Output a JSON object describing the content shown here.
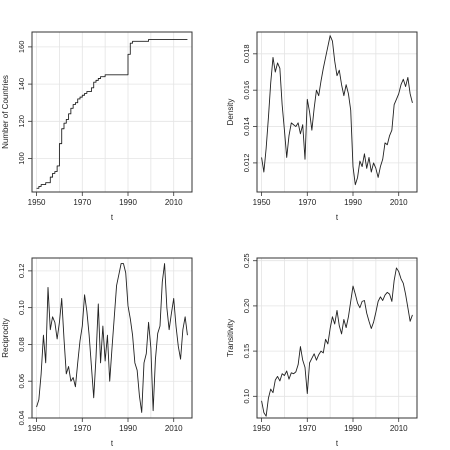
{
  "chart_data": [
    {
      "type": "line",
      "xlabel": "t",
      "ylabel": "Number of Countries",
      "xlim": [
        1948,
        2018
      ],
      "ylim": [
        82,
        168
      ],
      "xticks": [
        1950,
        1970,
        1990,
        2010
      ],
      "xticks_minor": [
        1960,
        1980,
        2000
      ],
      "yticks": [
        100,
        120,
        140,
        160
      ],
      "grid": true,
      "step": true,
      "x": [
        1950,
        1951,
        1952,
        1953,
        1954,
        1955,
        1956,
        1957,
        1958,
        1959,
        1960,
        1961,
        1962,
        1963,
        1964,
        1965,
        1966,
        1967,
        1968,
        1969,
        1970,
        1971,
        1972,
        1973,
        1974,
        1975,
        1976,
        1977,
        1978,
        1979,
        1980,
        1981,
        1982,
        1983,
        1984,
        1985,
        1986,
        1987,
        1988,
        1989,
        1990,
        1991,
        1992,
        1993,
        1994,
        1995,
        1996,
        1997,
        1998,
        1999,
        2000,
        2001,
        2002,
        2003,
        2004,
        2005,
        2006,
        2007,
        2008,
        2009,
        2010,
        2011,
        2012,
        2013,
        2014,
        2015,
        2016
      ],
      "y": [
        84,
        85,
        86,
        86,
        87,
        87,
        90,
        92,
        93,
        96,
        108,
        116,
        119,
        121,
        124,
        127,
        129,
        130,
        132,
        133,
        134,
        135,
        136,
        136,
        138,
        141,
        142,
        143,
        144,
        144,
        145,
        145,
        145,
        145,
        145,
        145,
        145,
        145,
        145,
        145,
        156,
        162,
        163,
        163,
        163,
        163,
        163,
        163,
        163,
        164,
        164,
        164,
        164,
        164,
        164,
        164,
        164,
        164,
        164,
        164,
        164,
        164,
        164,
        164,
        164,
        164,
        164
      ]
    },
    {
      "type": "line",
      "xlabel": "t",
      "ylabel": "Density",
      "xlim": [
        1948,
        2018
      ],
      "ylim": [
        0.0104,
        0.0192
      ],
      "xticks": [
        1950,
        1970,
        1990,
        2010
      ],
      "xticks_minor": [
        1960,
        1980,
        2000
      ],
      "yticks": [
        0.012,
        0.014,
        0.016,
        0.018
      ],
      "ytick_labels": [
        "0.012",
        "0.014",
        "0.016",
        "0.018"
      ],
      "grid": true,
      "x": [
        1950,
        1951,
        1952,
        1953,
        1954,
        1955,
        1956,
        1957,
        1958,
        1959,
        1960,
        1961,
        1962,
        1963,
        1964,
        1965,
        1966,
        1967,
        1968,
        1969,
        1970,
        1971,
        1972,
        1973,
        1974,
        1975,
        1976,
        1977,
        1978,
        1979,
        1980,
        1981,
        1982,
        1983,
        1984,
        1985,
        1986,
        1987,
        1988,
        1989,
        1990,
        1991,
        1992,
        1993,
        1994,
        1995,
        1996,
        1997,
        1998,
        1999,
        2000,
        2001,
        2002,
        2003,
        2004,
        2005,
        2006,
        2007,
        2008,
        2009,
        2010,
        2011,
        2012,
        2013,
        2014,
        2015,
        2016
      ],
      "y": [
        0.0123,
        0.0115,
        0.0128,
        0.0145,
        0.0164,
        0.0178,
        0.017,
        0.0175,
        0.0172,
        0.0152,
        0.0138,
        0.0123,
        0.0135,
        0.0142,
        0.0141,
        0.014,
        0.0142,
        0.0136,
        0.0141,
        0.0122,
        0.0155,
        0.0148,
        0.0138,
        0.015,
        0.016,
        0.0157,
        0.0165,
        0.0172,
        0.0178,
        0.0184,
        0.019,
        0.0187,
        0.0176,
        0.0168,
        0.0171,
        0.0163,
        0.0157,
        0.0163,
        0.0158,
        0.0149,
        0.0118,
        0.0108,
        0.0112,
        0.0121,
        0.0118,
        0.0125,
        0.0117,
        0.0123,
        0.0115,
        0.012,
        0.0117,
        0.0112,
        0.0118,
        0.0122,
        0.0131,
        0.013,
        0.0135,
        0.0138,
        0.0152,
        0.0155,
        0.0158,
        0.0163,
        0.0166,
        0.0162,
        0.0167,
        0.0158,
        0.0153
      ]
    },
    {
      "type": "line",
      "xlabel": "t",
      "ylabel": "Reciprocity",
      "xlim": [
        1948,
        2018
      ],
      "ylim": [
        0.04,
        0.127
      ],
      "xticks": [
        1950,
        1970,
        1990,
        2010
      ],
      "xticks_minor": [
        1960,
        1980,
        2000
      ],
      "yticks": [
        0.04,
        0.06,
        0.08,
        0.1,
        0.12
      ],
      "ytick_labels": [
        "0.04",
        "0.06",
        "0.08",
        "0.10",
        "0.12"
      ],
      "grid": true,
      "x": [
        1950,
        1951,
        1952,
        1953,
        1954,
        1955,
        1956,
        1957,
        1958,
        1959,
        1960,
        1961,
        1962,
        1963,
        1964,
        1965,
        1966,
        1967,
        1968,
        1969,
        1970,
        1971,
        1972,
        1973,
        1974,
        1975,
        1976,
        1977,
        1978,
        1979,
        1980,
        1981,
        1982,
        1983,
        1984,
        1985,
        1986,
        1987,
        1988,
        1989,
        1990,
        1991,
        1992,
        1993,
        1994,
        1995,
        1996,
        1997,
        1998,
        1999,
        2000,
        2001,
        2002,
        2003,
        2004,
        2005,
        2006,
        2007,
        2008,
        2009,
        2010,
        2011,
        2012,
        2013,
        2014,
        2015,
        2016
      ],
      "y": [
        0.046,
        0.05,
        0.064,
        0.085,
        0.07,
        0.111,
        0.088,
        0.095,
        0.092,
        0.083,
        0.092,
        0.105,
        0.083,
        0.064,
        0.068,
        0.06,
        0.062,
        0.057,
        0.07,
        0.082,
        0.09,
        0.107,
        0.098,
        0.085,
        0.068,
        0.051,
        0.073,
        0.102,
        0.07,
        0.09,
        0.071,
        0.085,
        0.06,
        0.078,
        0.095,
        0.112,
        0.118,
        0.124,
        0.124,
        0.119,
        0.101,
        0.094,
        0.085,
        0.07,
        0.066,
        0.052,
        0.043,
        0.07,
        0.075,
        0.092,
        0.078,
        0.044,
        0.072,
        0.086,
        0.09,
        0.114,
        0.124,
        0.1,
        0.088,
        0.097,
        0.105,
        0.09,
        0.079,
        0.072,
        0.088,
        0.095,
        0.085
      ]
    },
    {
      "type": "line",
      "xlabel": "t",
      "ylabel": "Transitivity",
      "xlim": [
        1948,
        2018
      ],
      "ylim": [
        0.076,
        0.253
      ],
      "xticks": [
        1950,
        1970,
        1990,
        2010
      ],
      "xticks_minor": [
        1960,
        1980,
        2000
      ],
      "yticks": [
        0.1,
        0.15,
        0.2,
        0.25
      ],
      "ytick_labels": [
        "0.10",
        "0.15",
        "0.20",
        "0.25"
      ],
      "grid": true,
      "x": [
        1950,
        1951,
        1952,
        1953,
        1954,
        1955,
        1956,
        1957,
        1958,
        1959,
        1960,
        1961,
        1962,
        1963,
        1964,
        1965,
        1966,
        1967,
        1968,
        1969,
        1970,
        1971,
        1972,
        1973,
        1974,
        1975,
        1976,
        1977,
        1978,
        1979,
        1980,
        1981,
        1982,
        1983,
        1984,
        1985,
        1986,
        1987,
        1988,
        1989,
        1990,
        1991,
        1992,
        1993,
        1994,
        1995,
        1996,
        1997,
        1998,
        1999,
        2000,
        2001,
        2002,
        2003,
        2004,
        2005,
        2006,
        2007,
        2008,
        2009,
        2010,
        2011,
        2012,
        2013,
        2014,
        2015,
        2016
      ],
      "y": [
        0.095,
        0.082,
        0.078,
        0.098,
        0.108,
        0.104,
        0.118,
        0.122,
        0.117,
        0.125,
        0.123,
        0.128,
        0.119,
        0.126,
        0.125,
        0.127,
        0.135,
        0.155,
        0.14,
        0.132,
        0.103,
        0.137,
        0.142,
        0.147,
        0.14,
        0.146,
        0.15,
        0.148,
        0.163,
        0.158,
        0.175,
        0.188,
        0.18,
        0.195,
        0.178,
        0.169,
        0.185,
        0.176,
        0.188,
        0.205,
        0.222,
        0.213,
        0.203,
        0.198,
        0.205,
        0.206,
        0.192,
        0.183,
        0.175,
        0.182,
        0.193,
        0.205,
        0.21,
        0.206,
        0.212,
        0.215,
        0.213,
        0.205,
        0.228,
        0.242,
        0.238,
        0.23,
        0.225,
        0.213,
        0.198,
        0.183,
        0.19
      ]
    }
  ],
  "colors": {
    "line": "#222222",
    "axis": "#333333",
    "grid": "#e4e4e4"
  }
}
